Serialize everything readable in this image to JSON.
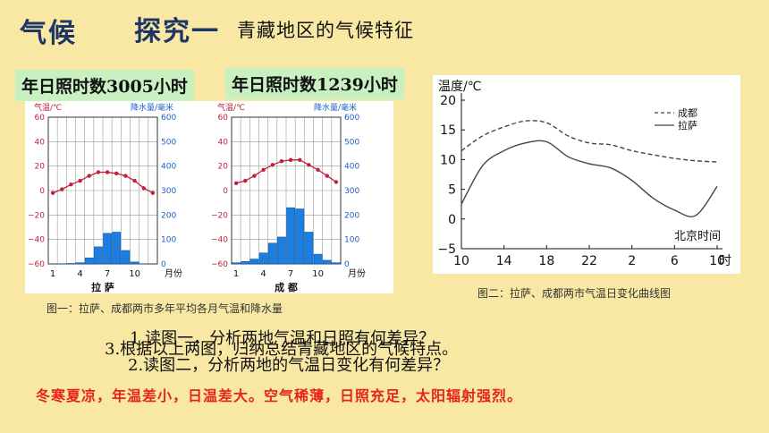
{
  "header": {
    "topic": "气候",
    "section": "探究一",
    "subtitle": "青藏地区的气候特征"
  },
  "tags": {
    "lhasa": "年日照时数3005小时",
    "chengdu": "年日照时数1239小时"
  },
  "captions": {
    "fig1": "图一：拉萨、成都两市多年平均各月气温和降水量",
    "fig2": "图二：拉萨、成都两市气温日变化曲线图"
  },
  "questions": {
    "q1": "1.读图一，分析两地气温和日照有何差异？",
    "q3": "3.根据以上两图，归纳总结青藏地区的气候特点。",
    "q2": "2.读图二，分析两地的气温日变化有何差异？"
  },
  "answer": "冬寒夏凉，年温差小，日温差大。空气稀薄，日照充足，太阳辐射强烈。",
  "colors": {
    "temp_line": "#c0203a",
    "precip_bar": "#1a7fe0",
    "precip_axis": "#1a5fc8",
    "temp_axis": "#c0203a",
    "answer": "#e8231c"
  },
  "chart_data": [
    {
      "type": "bar",
      "name_label": "拉 萨",
      "temp_axis_label": "气温/℃",
      "precip_axis_label": "降水量/毫米",
      "temp_ticks": [
        "60",
        "40",
        "20",
        "0",
        "−20",
        "−40",
        "−60"
      ],
      "precip_ticks": [
        "600",
        "500",
        "400",
        "300",
        "200",
        "100",
        "0"
      ],
      "x_ticks": [
        "1",
        "4",
        "7",
        "10",
        "月份"
      ],
      "ylim_temp": [
        -60,
        60
      ],
      "ylim_precip": [
        0,
        600
      ],
      "months": [
        1,
        2,
        3,
        4,
        5,
        6,
        7,
        8,
        9,
        10,
        11,
        12
      ],
      "temperature": [
        -2,
        1,
        5,
        8,
        12,
        15,
        15,
        14,
        12,
        8,
        2,
        -2
      ],
      "precipitation": [
        0,
        1,
        2,
        5,
        25,
        70,
        125,
        130,
        55,
        8,
        1,
        0
      ]
    },
    {
      "type": "bar",
      "name_label": "成 都",
      "temp_axis_label": "气温/℃",
      "precip_axis_label": "降水量/毫米",
      "temp_ticks": [
        "60",
        "40",
        "20",
        "0",
        "−20",
        "−40",
        "−60"
      ],
      "precip_ticks": [
        "600",
        "500",
        "400",
        "300",
        "200",
        "100",
        "0"
      ],
      "x_ticks": [
        "1",
        "4",
        "7",
        "10",
        "月份"
      ],
      "ylim_temp": [
        -60,
        60
      ],
      "ylim_precip": [
        0,
        600
      ],
      "months": [
        1,
        2,
        3,
        4,
        5,
        6,
        7,
        8,
        9,
        10,
        11,
        12
      ],
      "temperature": [
        6,
        8,
        12,
        17,
        21,
        24,
        25,
        25,
        21,
        17,
        12,
        7
      ],
      "precipitation": [
        5,
        10,
        20,
        45,
        85,
        110,
        230,
        225,
        130,
        40,
        15,
        5
      ]
    },
    {
      "type": "line",
      "ylabel": "温度/℃",
      "xlabel": "北京时间",
      "x_unit": "时",
      "y_ticks": [
        "20",
        "15",
        "10",
        "5",
        "0",
        "−5"
      ],
      "x_ticks": [
        "10",
        "14",
        "18",
        "22",
        "2",
        "6",
        "10"
      ],
      "ylim": [
        -5,
        20
      ],
      "x": [
        10,
        12,
        14,
        16,
        18,
        20,
        22,
        24,
        26,
        28,
        30,
        32,
        34
      ],
      "series": [
        {
          "name": "成都",
          "style": "dashed",
          "values": [
            11.5,
            14,
            15.5,
            16.5,
            16.2,
            14,
            12.8,
            12.5,
            11.5,
            10.8,
            10.2,
            9.8,
            9.6
          ]
        },
        {
          "name": "拉萨",
          "style": "solid",
          "values": [
            2.5,
            9,
            11.5,
            12.8,
            13,
            10.5,
            9.3,
            8.6,
            6.5,
            3.5,
            1.5,
            0.6,
            5.5
          ]
        }
      ]
    }
  ]
}
